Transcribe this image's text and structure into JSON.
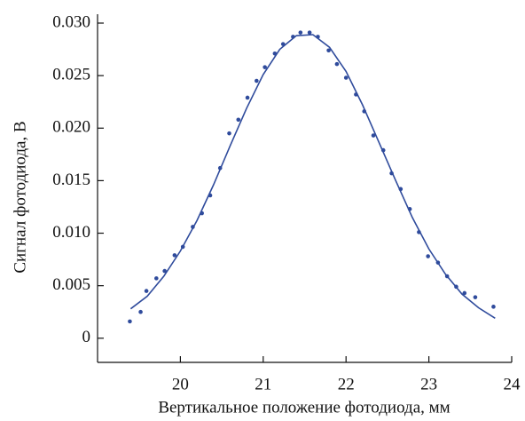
{
  "chart_data": {
    "type": "scatter",
    "xlabel": "Вертикальное положение фотодиода, мм",
    "ylabel": "Сигнал фотодиода, В",
    "xlim": [
      19,
      24
    ],
    "xticks": [
      20,
      21,
      22,
      23,
      24
    ],
    "ylim": [
      -0.0023,
      0.03
    ],
    "yticks": [
      0,
      0.005,
      {
        "value": 0.01,
        "label": "0.010"
      },
      0.015,
      {
        "value": 0.02,
        "label": "0.020"
      },
      0.025,
      {
        "value": 0.03,
        "label": "0.030"
      }
    ],
    "series": [
      {
        "kind": "markers",
        "color": "#2f4b9c",
        "x": [
          19.39,
          19.52,
          19.59,
          19.71,
          19.81,
          19.93,
          20.03,
          20.15,
          20.26,
          20.36,
          20.48,
          20.59,
          20.7,
          20.81,
          20.92,
          21.02,
          21.14,
          21.24,
          21.36,
          21.45,
          21.56,
          21.66,
          21.79,
          21.89,
          22.0,
          22.12,
          22.22,
          22.33,
          22.45,
          22.55,
          22.66,
          22.77,
          22.88,
          22.99,
          23.11,
          23.22,
          23.33,
          23.43,
          23.56,
          23.78
        ],
        "values": [
          0.0016,
          0.0025,
          0.0045,
          0.0057,
          0.0064,
          0.0079,
          0.0087,
          0.0106,
          0.0119,
          0.0136,
          0.0162,
          0.0195,
          0.0208,
          0.0229,
          0.0245,
          0.0258,
          0.0271,
          0.028,
          0.0287,
          0.0291,
          0.0291,
          0.0287,
          0.0274,
          0.0261,
          0.0248,
          0.0232,
          0.0216,
          0.0193,
          0.0179,
          0.0157,
          0.0142,
          0.0123,
          0.0101,
          0.0078,
          0.0072,
          0.0059,
          0.0049,
          0.0043,
          0.0039,
          0.003
        ]
      },
      {
        "kind": "line",
        "color": "#2f4b9c",
        "x": [
          19.4,
          19.6,
          19.8,
          20.0,
          20.2,
          20.4,
          20.6,
          20.8,
          21.0,
          21.2,
          21.4,
          21.6,
          21.8,
          22.0,
          22.2,
          22.4,
          22.6,
          22.8,
          23.0,
          23.2,
          23.4,
          23.6,
          23.8
        ],
        "values": [
          0.0028,
          0.004,
          0.0059,
          0.0083,
          0.0112,
          0.0146,
          0.0183,
          0.0219,
          0.0251,
          0.0275,
          0.0288,
          0.0289,
          0.0277,
          0.0254,
          0.0222,
          0.0186,
          0.015,
          0.0115,
          0.0085,
          0.0061,
          0.0042,
          0.0029,
          0.0019
        ]
      }
    ]
  }
}
